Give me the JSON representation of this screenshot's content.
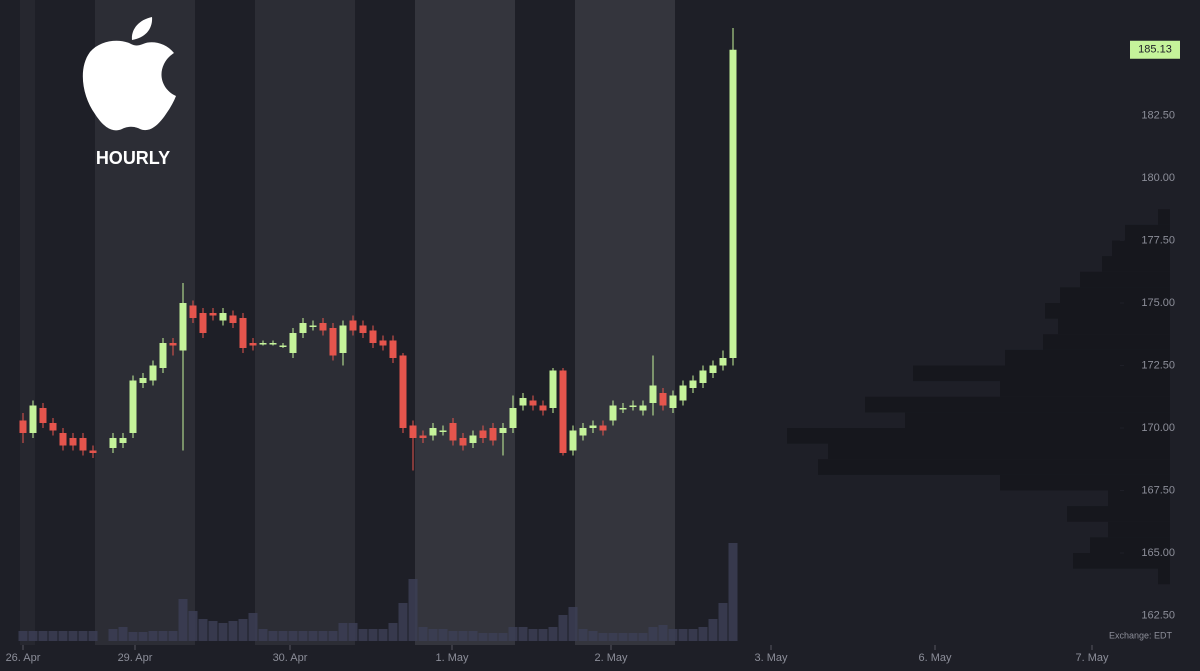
{
  "chart_data": {
    "type": "candlestick",
    "subtitle": "HOURLY",
    "note": "Exchange: EDT",
    "x": [
      2,
      3,
      4,
      5,
      6,
      7,
      8,
      9,
      11,
      12,
      13,
      14,
      15,
      16,
      17,
      18,
      19,
      20,
      21,
      22,
      23,
      24,
      25,
      26,
      27,
      28,
      29,
      30,
      31,
      32,
      33,
      34,
      35,
      36,
      37,
      38,
      39,
      40,
      41,
      42,
      43,
      44,
      45,
      46,
      47,
      48,
      49,
      50,
      51,
      52,
      53,
      54,
      55,
      56,
      57,
      58,
      59,
      60,
      61,
      62,
      63,
      64,
      65,
      66,
      67,
      68,
      69,
      70,
      71,
      72,
      73
    ],
    "open": [
      170.3,
      169.8,
      170.8,
      170.2,
      169.8,
      169.6,
      169.6,
      169.1,
      169.2,
      169.4,
      169.8,
      171.8,
      171.9,
      172.4,
      173.4,
      173.1,
      174.9,
      174.6,
      174.6,
      174.3,
      174.5,
      174.4,
      173.4,
      173.4,
      173.4,
      173.3,
      173.0,
      173.8,
      174.1,
      174.2,
      174.0,
      173.0,
      174.3,
      174.1,
      173.9,
      173.5,
      173.5,
      172.9,
      170.1,
      169.7,
      169.7,
      169.9,
      170.2,
      169.6,
      169.4,
      169.9,
      170.0,
      169.8,
      170.0,
      170.9,
      171.1,
      170.9,
      170.8,
      172.3,
      169.1,
      169.7,
      170.0,
      170.1,
      170.3,
      170.8,
      170.9,
      170.7,
      171.0,
      171.4,
      170.8,
      171.1,
      171.6,
      171.8,
      172.2,
      172.5,
      172.8
    ],
    "high": [
      170.6,
      171.1,
      171.0,
      170.4,
      170.0,
      169.8,
      169.8,
      169.3,
      169.8,
      169.8,
      172.1,
      172.2,
      172.7,
      173.6,
      173.6,
      175.8,
      175.1,
      174.8,
      174.8,
      174.8,
      174.7,
      174.6,
      173.6,
      173.5,
      173.5,
      173.4,
      174.0,
      174.4,
      174.3,
      174.4,
      174.2,
      174.3,
      174.5,
      174.3,
      174.1,
      173.7,
      173.7,
      173.0,
      170.3,
      169.9,
      170.2,
      170.1,
      170.4,
      169.8,
      169.9,
      170.1,
      170.2,
      170.2,
      171.3,
      171.4,
      171.3,
      171.1,
      172.4,
      172.4,
      170.1,
      170.2,
      170.3,
      170.3,
      171.1,
      171.0,
      171.1,
      171.1,
      172.9,
      171.6,
      171.5,
      171.9,
      172.1,
      172.5,
      172.7,
      173.1,
      186.0
    ],
    "low": [
      169.4,
      169.6,
      170.0,
      169.7,
      169.1,
      169.1,
      168.9,
      168.8,
      169.0,
      169.2,
      169.6,
      171.6,
      171.7,
      172.2,
      172.9,
      169.1,
      174.2,
      173.6,
      174.3,
      174.1,
      174.0,
      173.0,
      173.1,
      173.3,
      173.3,
      173.2,
      172.8,
      173.6,
      173.9,
      173.7,
      172.7,
      172.5,
      173.7,
      173.6,
      173.2,
      173.1,
      172.6,
      169.8,
      168.3,
      169.4,
      169.5,
      169.7,
      169.3,
      169.1,
      169.2,
      169.4,
      169.3,
      168.9,
      169.8,
      170.7,
      170.7,
      170.5,
      170.6,
      168.9,
      168.9,
      169.5,
      169.8,
      169.7,
      170.1,
      170.6,
      170.7,
      170.5,
      170.5,
      170.7,
      170.6,
      170.9,
      171.4,
      171.6,
      172.0,
      172.3,
      172.5
    ],
    "close": [
      169.8,
      170.9,
      170.2,
      169.9,
      169.3,
      169.3,
      169.1,
      169.0,
      169.6,
      169.6,
      171.9,
      172.0,
      172.5,
      173.4,
      173.3,
      175.0,
      174.4,
      173.8,
      174.5,
      174.6,
      174.2,
      173.2,
      173.3,
      173.4,
      173.4,
      173.3,
      173.8,
      174.2,
      174.1,
      173.9,
      172.9,
      174.1,
      173.9,
      173.8,
      173.4,
      173.3,
      172.8,
      170.0,
      169.6,
      169.6,
      170.0,
      169.9,
      169.5,
      169.3,
      169.7,
      169.6,
      169.5,
      170.0,
      170.8,
      171.2,
      170.9,
      170.7,
      172.3,
      169.0,
      169.9,
      170.0,
      170.1,
      169.9,
      170.9,
      170.8,
      170.9,
      170.9,
      171.7,
      170.9,
      171.3,
      171.7,
      171.9,
      172.3,
      172.5,
      172.8,
      185.13
    ],
    "volume": [
      10,
      10,
      10,
      10,
      10,
      10,
      10,
      10,
      12,
      14,
      9,
      9,
      10,
      10,
      10,
      42,
      30,
      22,
      20,
      18,
      20,
      22,
      28,
      12,
      10,
      10,
      10,
      10,
      10,
      10,
      10,
      18,
      18,
      12,
      12,
      12,
      18,
      38,
      62,
      14,
      12,
      12,
      10,
      10,
      10,
      8,
      8,
      8,
      14,
      14,
      12,
      12,
      14,
      26,
      34,
      12,
      10,
      8,
      8,
      8,
      8,
      8,
      14,
      16,
      12,
      12,
      12,
      14,
      22,
      38,
      98
    ],
    "volume_ylim": [
      0,
      100
    ],
    "volume_profile": {
      "bins": [
        163.75,
        164.375,
        165,
        165.625,
        166.25,
        166.875,
        167.5,
        168.125,
        168.75,
        169.375,
        170,
        170.625,
        171.25,
        171.875,
        172.5,
        173.125,
        173.75,
        174.375,
        175,
        175.625,
        176.25,
        176.875,
        177.5,
        178.125,
        178.75
      ],
      "values": [
        12,
        97,
        80,
        62,
        103,
        62,
        170,
        352,
        342,
        383,
        265,
        305,
        170,
        257,
        165,
        127,
        112,
        125,
        110,
        90,
        68,
        58,
        45,
        12
      ]
    },
    "up_color": "#c5f39a",
    "down_color": "#e5554d",
    "xlim": [
      -0.3,
      119.7
    ],
    "ylim": [
      161.32,
      187.12
    ],
    "xticks": [
      {
        "value": 2,
        "label": "26. Apr"
      },
      {
        "value": 13.2,
        "label": "29. Apr"
      },
      {
        "value": 28.7,
        "label": "30. Apr"
      },
      {
        "value": 44.9,
        "label": "1. May"
      },
      {
        "value": 60.8,
        "label": "2. May"
      },
      {
        "value": 76.8,
        "label": "3. May"
      },
      {
        "value": 93.2,
        "label": "6. May"
      },
      {
        "value": 108.9,
        "label": "7. May"
      }
    ],
    "yticks": [
      {
        "value": 162.5,
        "label": "162.50"
      },
      {
        "value": 165,
        "label": "165.00"
      },
      {
        "value": 167.5,
        "label": "167.50"
      },
      {
        "value": 170,
        "label": "170.00"
      },
      {
        "value": 172.5,
        "label": "172.50"
      },
      {
        "value": 175,
        "label": "175.00"
      },
      {
        "value": 177.5,
        "label": "177.50"
      },
      {
        "value": 180,
        "label": "180.00"
      },
      {
        "value": 182.5,
        "label": "182.50"
      }
    ]
  }
}
